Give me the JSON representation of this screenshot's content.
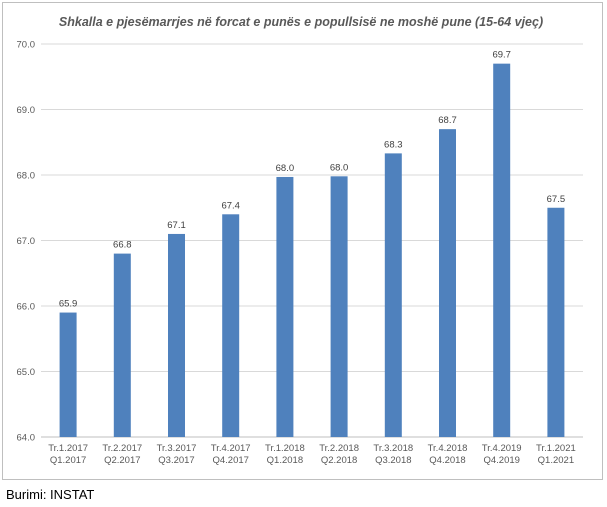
{
  "chart_data": {
    "type": "bar",
    "title": "Shkalla e pjesëmarrjes në forcat e punës e popullsisë ne moshë pune (15-64 vjeç)",
    "categories": [
      [
        "Tr.1.2017",
        "Q1.2017"
      ],
      [
        "Tr.2.2017",
        "Q2.2017"
      ],
      [
        "Tr.3.2017",
        "Q3.2017"
      ],
      [
        "Tr.4.2017",
        "Q4.2017"
      ],
      [
        "Tr.1.2018",
        "Q1.2018"
      ],
      [
        "Tr.2.2018",
        "Q2.2018"
      ],
      [
        "Tr.3.2018",
        "Q3.2018"
      ],
      [
        "Tr.4.2018",
        "Q4.2018"
      ],
      [
        "Tr.4.2019",
        "Q4.2019"
      ],
      [
        "Tr.1.2021",
        "Q1.2021"
      ]
    ],
    "values": [
      65.9,
      66.8,
      67.1,
      67.4,
      67.97,
      67.98,
      68.33,
      68.7,
      69.7,
      67.5
    ],
    "data_labels": [
      "65.9",
      "66.8",
      "67.1",
      "67.4",
      "68.0",
      "68.0",
      "68.3",
      "68.7",
      "69.7",
      "67.5"
    ],
    "ylim": [
      64.0,
      70.0
    ],
    "yticks": [
      "64.0",
      "65.0",
      "66.0",
      "67.0",
      "68.0",
      "69.0",
      "70.0"
    ],
    "xlabel": "",
    "ylabel": "",
    "grid": true,
    "legend": "none",
    "colors": {
      "bar": "#4f81bd",
      "grid": "#d9d9d9",
      "text": "#595959"
    }
  },
  "source": "Burimi: INSTAT"
}
